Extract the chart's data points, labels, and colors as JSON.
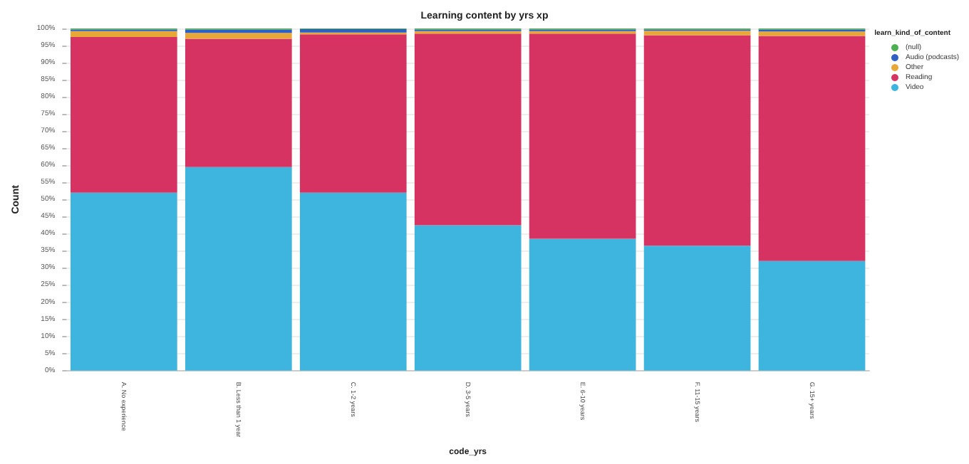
{
  "chart_data": {
    "type": "bar",
    "title": "Learning content by yrs xp",
    "xlabel": "code_yrs",
    "ylabel": "Count",
    "legend_title": "learn_kind_of_content",
    "categories": [
      "A. No experience",
      "B. Less than 1 year",
      "C. 1-2 years",
      "D. 3-5 years",
      "E. 6-10 years",
      "F. 11-15 years",
      "G. 15+ years"
    ],
    "stacked": true,
    "ylim": [
      0,
      100
    ],
    "yticks": [
      {
        "value": 0,
        "label": "0%"
      },
      {
        "value": 5,
        "label": "5%"
      },
      {
        "value": 10,
        "label": "10%"
      },
      {
        "value": 15,
        "label": "15%"
      },
      {
        "value": 20,
        "label": "20%"
      },
      {
        "value": 25,
        "label": "25%"
      },
      {
        "value": 30,
        "label": "30%"
      },
      {
        "value": 35,
        "label": "35%"
      },
      {
        "value": 40,
        "label": "40%"
      },
      {
        "value": 45,
        "label": "45%"
      },
      {
        "value": 50,
        "label": "50%"
      },
      {
        "value": 55,
        "label": "55%"
      },
      {
        "value": 60,
        "label": "60%"
      },
      {
        "value": 65,
        "label": "65%"
      },
      {
        "value": 70,
        "label": "70%"
      },
      {
        "value": 75,
        "label": "75%"
      },
      {
        "value": 80,
        "label": "80%"
      },
      {
        "value": 85,
        "label": "85%"
      },
      {
        "value": 90,
        "label": "90%"
      },
      {
        "value": 95,
        "label": "95%"
      },
      {
        "value": 100,
        "label": "100%"
      }
    ],
    "grid": "y",
    "legend": "top right",
    "series": [
      {
        "name": "Video",
        "color": "#3db5de",
        "values": [
          52,
          59.5,
          52,
          42.5,
          38.5,
          36.5,
          32
        ]
      },
      {
        "name": "Reading",
        "color": "#d63362",
        "values": [
          45.5,
          37.5,
          46.3,
          56,
          60,
          61.5,
          65.8
        ]
      },
      {
        "name": "Other",
        "color": "#e8a838",
        "values": [
          1.7,
          1.7,
          0.5,
          0.7,
          0.7,
          1.3,
          1.3
        ]
      },
      {
        "name": "Audio (podcasts)",
        "color": "#2f5fc4",
        "values": [
          0.5,
          1,
          1,
          0.5,
          0.5,
          0.4,
          0.6
        ]
      },
      {
        "name": "(null)",
        "color": "#4caf50",
        "values": [
          0.3,
          0.3,
          0.2,
          0.3,
          0.3,
          0.3,
          0.3
        ]
      }
    ]
  }
}
